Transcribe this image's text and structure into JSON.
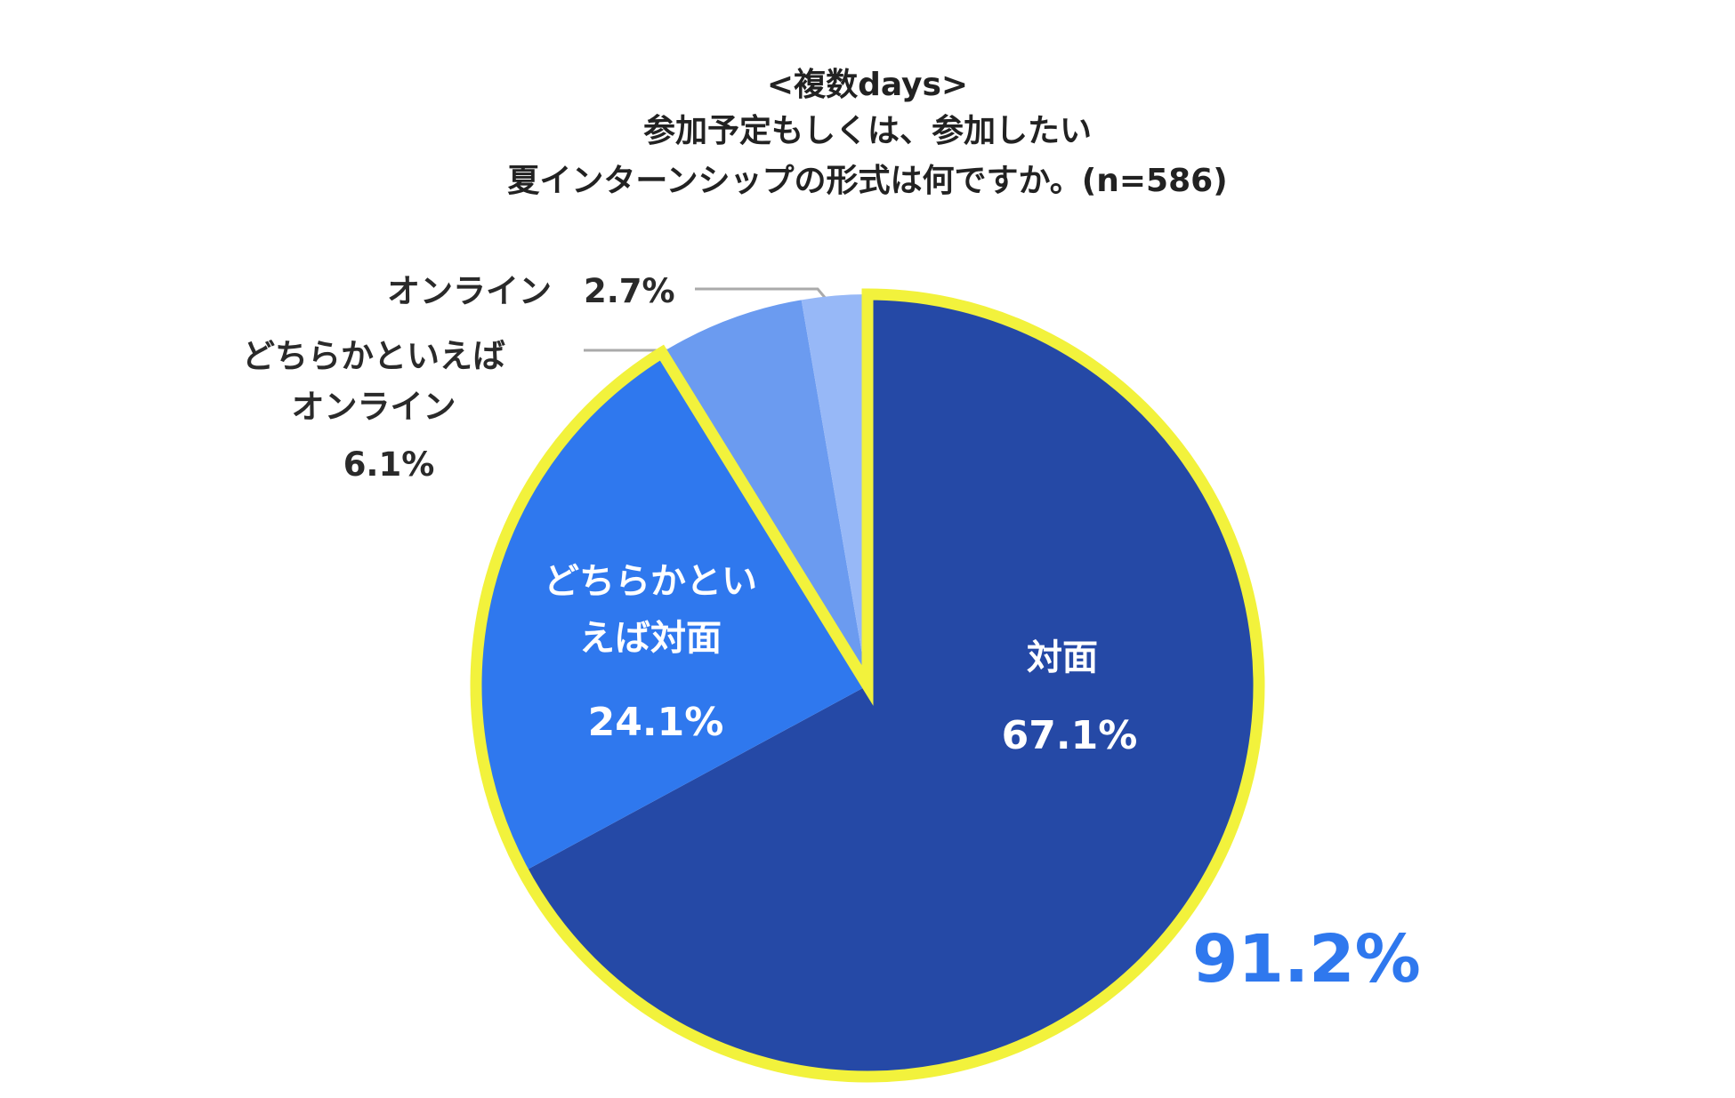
{
  "chart_data": {
    "type": "pie",
    "title": [
      "<複数days>",
      "参加予定もしくは、参加したい",
      "夏インターンシップの形式は何ですか。(n=586)"
    ],
    "categories": [
      "対面",
      "どちらかといえば対面",
      "どちらかといえばオンライン",
      "オンライン"
    ],
    "values": [
      67.1,
      24.1,
      6.1,
      2.7
    ],
    "value_labels": [
      "67.1%",
      "24.1%",
      "6.1%",
      "2.7%"
    ],
    "colors": [
      "#2549a6",
      "#2f78ee",
      "#6b9bf0",
      "#97b8f7"
    ],
    "annotation": {
      "value": 91.2,
      "label": "91.2%",
      "color": "#2f78ee"
    },
    "highlight_color": "#f2f23c"
  }
}
